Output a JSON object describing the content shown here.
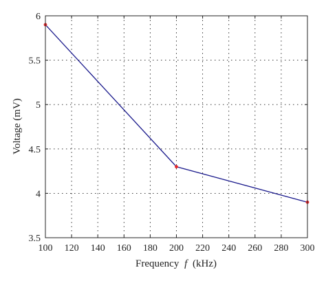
{
  "chart_data": {
    "type": "line",
    "title": "",
    "xlabel": "Frequency",
    "xlabel_symbol": "f",
    "xlabel_unit": "(kHz)",
    "ylabel": "Voltage (mV)",
    "xlim": [
      100,
      300
    ],
    "ylim": [
      3.5,
      6
    ],
    "xticks": [
      "100",
      "120",
      "140",
      "160",
      "180",
      "200",
      "220",
      "240",
      "260",
      "280",
      "300"
    ],
    "yticks": [
      "3.5",
      "4",
      "4.5",
      "5",
      "5.5",
      "6"
    ],
    "grid": true,
    "series": [
      {
        "x": [
          100,
          200,
          300
        ],
        "values": [
          5.9,
          4.3,
          3.9
        ],
        "line_color": "#1a1a8c",
        "marker_color": "#e8262a"
      }
    ]
  }
}
